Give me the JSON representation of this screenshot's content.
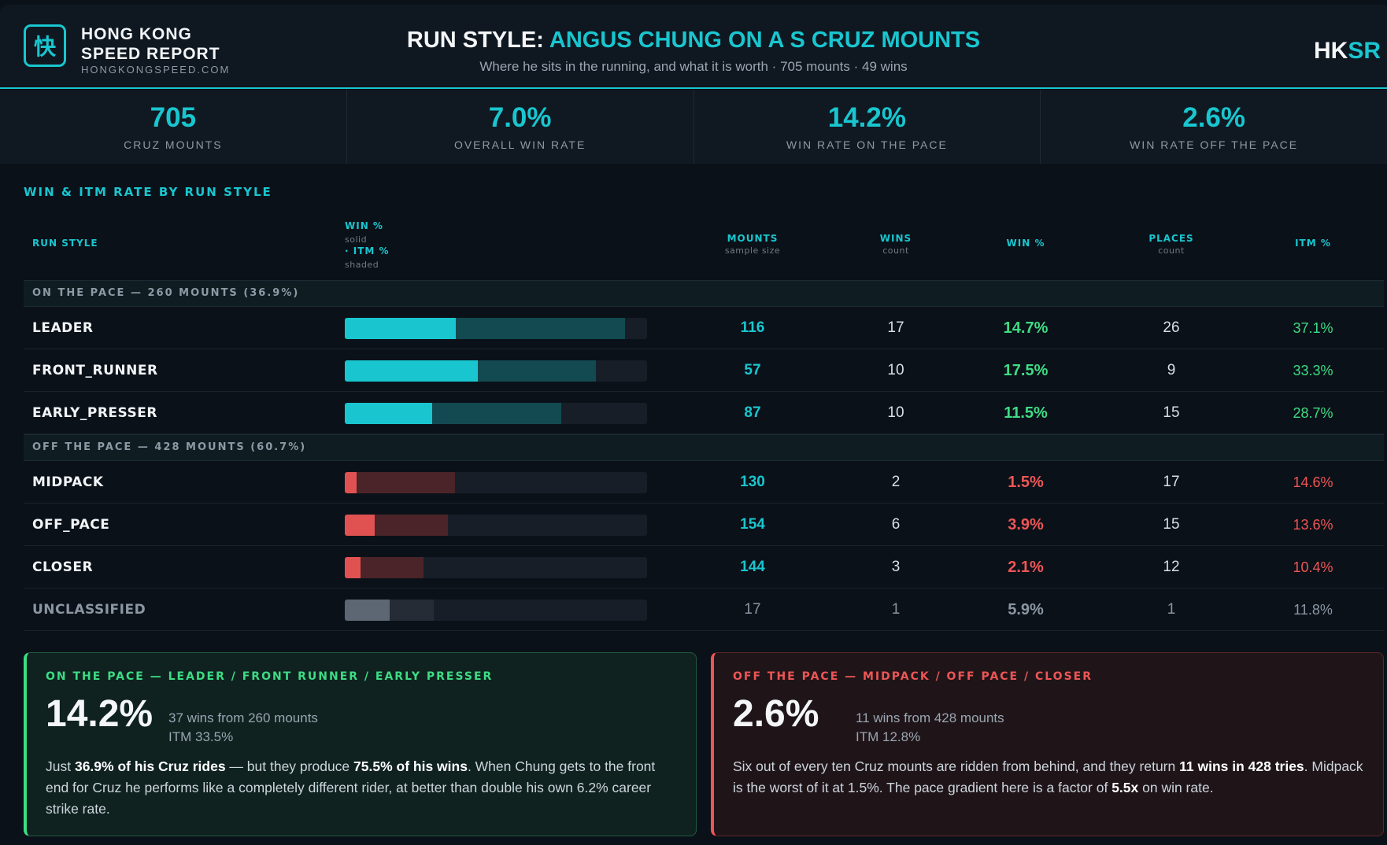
{
  "brand": {
    "logo_glyph": "快",
    "line1": "HONG KONG",
    "line2": "SPEED REPORT",
    "url": "HONGKONGSPEED.COM",
    "badge_a": "HK",
    "badge_b": "SR"
  },
  "header": {
    "title_prefix": "RUN STYLE:",
    "title_accent": "ANGUS CHUNG ON A S CRUZ MOUNTS",
    "subtitle": "Where he sits in the running, and what it is worth · 705 mounts · 49 wins"
  },
  "stats": [
    {
      "value": "705",
      "label": "CRUZ MOUNTS"
    },
    {
      "value": "7.0%",
      "label": "OVERALL WIN RATE"
    },
    {
      "value": "14.2%",
      "label": "WIN RATE ON THE PACE"
    },
    {
      "value": "2.6%",
      "label": "WIN RATE OFF THE PACE"
    }
  ],
  "section_title": "WIN & ITM RATE BY RUN STYLE",
  "columns": {
    "run_style": "RUN STYLE",
    "bar_win": "WIN %",
    "bar_win_sub": "solid",
    "bar_itm": "· ITM %",
    "bar_itm_sub": "shaded",
    "mounts": "MOUNTS",
    "mounts_sub": "sample size",
    "wins": "WINS",
    "wins_sub": "count",
    "winp": "WIN %",
    "places": "PLACES",
    "places_sub": "count",
    "itm": "ITM %"
  },
  "groups": {
    "on": "ON THE PACE — 260 MOUNTS (36.9%)",
    "off": "OFF THE PACE — 428 MOUNTS (60.7%)"
  },
  "rows": [
    {
      "name": "LEADER",
      "mounts": "116",
      "wins": "17",
      "winp": "14.7%",
      "places": "26",
      "itm": "37.1%",
      "win_frac": 0.367,
      "itm_frac": 0.927,
      "tone": "on"
    },
    {
      "name": "FRONT_RUNNER",
      "mounts": "57",
      "wins": "10",
      "winp": "17.5%",
      "places": "9",
      "itm": "33.3%",
      "win_frac": 0.44,
      "itm_frac": 0.832,
      "tone": "on"
    },
    {
      "name": "EARLY_PRESSER",
      "mounts": "87",
      "wins": "10",
      "winp": "11.5%",
      "places": "15",
      "itm": "28.7%",
      "win_frac": 0.29,
      "itm_frac": 0.717,
      "tone": "on"
    },
    {
      "name": "MIDPACK",
      "mounts": "130",
      "wins": "2",
      "winp": "1.5%",
      "places": "17",
      "itm": "14.6%",
      "win_frac": 0.038,
      "itm_frac": 0.365,
      "tone": "off"
    },
    {
      "name": "OFF_PACE",
      "mounts": "154",
      "wins": "6",
      "winp": "3.9%",
      "places": "15",
      "itm": "13.6%",
      "win_frac": 0.098,
      "itm_frac": 0.34,
      "tone": "off"
    },
    {
      "name": "CLOSER",
      "mounts": "144",
      "wins": "3",
      "winp": "2.1%",
      "places": "12",
      "itm": "10.4%",
      "win_frac": 0.053,
      "itm_frac": 0.26,
      "tone": "off"
    },
    {
      "name": "UNCLASSIFIED",
      "mounts": "17",
      "wins": "1",
      "winp": "5.9%",
      "places": "1",
      "itm": "11.8%",
      "win_frac": 0.148,
      "itm_frac": 0.295,
      "tone": "neutral"
    }
  ],
  "colors": {
    "on_win": "#19c6cf",
    "on_itm": "#134a51",
    "on_text": "#3ddc84",
    "off_win": "#e05252",
    "off_itm": "#4a2428",
    "off_text": "#ee5555",
    "neutral_win": "#5d6773",
    "neutral_itm": "#252c36",
    "neutral_text": "#8a96a2"
  },
  "cards": {
    "on": {
      "head": "ON THE PACE — LEADER / FRONT RUNNER / EARLY PRESSER",
      "big": "14.2%",
      "sub1": "37 wins from 260 mounts",
      "sub2": "ITM 33.5%",
      "body_1": "Just ",
      "body_b1": "36.9% of his Cruz rides",
      "body_2": " — but they produce ",
      "body_b2": "75.5% of his wins",
      "body_3": ". When Chung gets to the front end for Cruz he performs like a completely different rider, at better than double his own 6.2% career strike rate."
    },
    "off": {
      "head": "OFF THE PACE — MIDPACK / OFF PACE / CLOSER",
      "big": "2.6%",
      "sub1": "11 wins from 428 mounts",
      "sub2": "ITM 12.8%",
      "body_1": "Six out of every ten Cruz mounts are ridden from behind, and they return ",
      "body_b1": "11 wins in 428 tries",
      "body_2": ". Midpack is the worst of it at 1.5%. The pace gradient here is a factor of ",
      "body_b2": "5.5x",
      "body_3": " on win rate."
    }
  }
}
